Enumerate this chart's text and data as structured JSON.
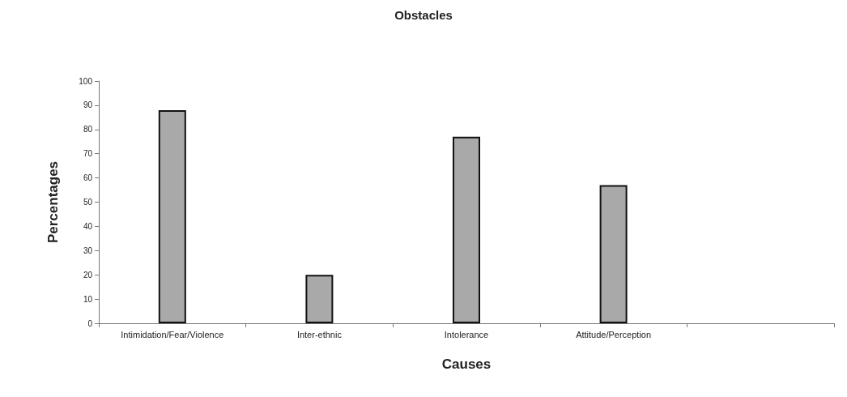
{
  "chart_data": {
    "type": "bar",
    "title": "Obstacles",
    "xlabel": "Causes",
    "ylabel": "Percentages",
    "categories": [
      "Intimidation/Fear/Violence",
      "Inter-ethnic",
      "Intolerance",
      "Attitude/Perception",
      null
    ],
    "values": [
      88,
      20,
      77,
      57,
      null
    ],
    "color": "#a9a9a9",
    "ylim": [
      0,
      100
    ],
    "yticks": [
      0,
      10,
      20,
      30,
      40,
      50,
      60,
      70,
      80,
      90,
      100
    ],
    "grid": false
  }
}
